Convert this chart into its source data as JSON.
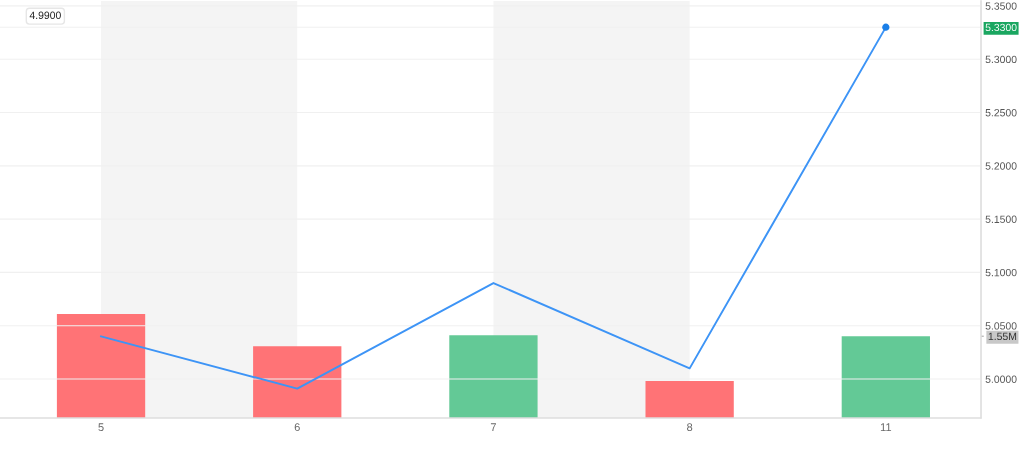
{
  "chart_data": {
    "type": "line",
    "categories": [
      "5",
      "6",
      "7",
      "8",
      "11"
    ],
    "series": [
      {
        "color": "#3d94f6",
        "values": [
          5.04,
          4.991,
          5.09,
          5.01,
          5.33
        ]
      },
      {
        "type": "scatter",
        "color": "#1a7fe8",
        "x": [
          "11"
        ],
        "values": [
          5.33
        ]
      },
      {
        "type": "bar",
        "axis": "y2",
        "colors": [
          "#ff6b6f",
          "#ff6b6f",
          "#5bc690",
          "#ff6b6f",
          "#5bc690"
        ],
        "values": [
          1.97,
          1.36,
          1.57,
          0.7,
          1.55
        ]
      }
    ],
    "ylim": [
      4.9634,
      5.3547
    ],
    "yticks": [
      {
        "value": 5.0,
        "label": "5.0000"
      },
      {
        "value": 5.05,
        "label": "5.0500"
      },
      {
        "value": 5.1,
        "label": "5.1000"
      },
      {
        "value": 5.15,
        "label": "5.1500"
      },
      {
        "value": 5.2,
        "label": "5.2000"
      },
      {
        "value": 5.25,
        "label": "5.2500"
      },
      {
        "value": 5.3,
        "label": "5.3000"
      },
      {
        "value": 5.33,
        "label": "5.3300"
      },
      {
        "value": 5.35,
        "label": "5.3500"
      }
    ],
    "y2lim": [
      0,
      7.9
    ],
    "y2ticks": [
      {
        "value": 1.55,
        "label": "1.55M"
      }
    ],
    "bands": [
      {
        "axis": "x",
        "from": "5",
        "to": "6",
        "color": "#f4f4f4"
      },
      {
        "axis": "x",
        "from": "7",
        "to": "8",
        "color": "#f4f4f4"
      }
    ],
    "annotations": [
      "4.9900"
    ],
    "grid": "y"
  }
}
